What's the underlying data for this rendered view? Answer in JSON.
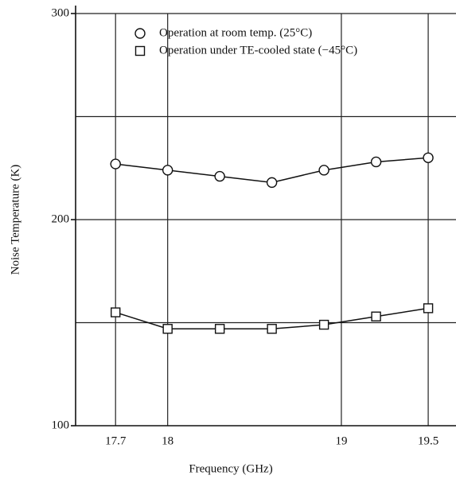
{
  "chart_data": {
    "type": "line",
    "x_label": "Frequency (GHz)",
    "y_label": "Noise Temperature (K)",
    "x": [
      17.7,
      18.0,
      18.3,
      18.6,
      18.9,
      19.2,
      19.5
    ],
    "series": [
      {
        "name": "Operation at room temp. (25°C)",
        "color": "#111111",
        "marker": "circle",
        "values": [
          227,
          224,
          221,
          218,
          224,
          228,
          230
        ]
      },
      {
        "name": "Operation under TE-cooled state (−45°C)",
        "color": "#111111",
        "marker": "square",
        "values": [
          155,
          147,
          147,
          147,
          149,
          153,
          157
        ]
      }
    ],
    "xlim": [
      17.47,
      19.66
    ],
    "ylim": [
      100,
      300
    ],
    "xticks": [
      17.7,
      18.0,
      19.0,
      19.5
    ],
    "yticks": [
      100,
      200,
      300
    ],
    "ygrid": [
      150,
      200,
      250,
      300
    ],
    "grid": true
  }
}
